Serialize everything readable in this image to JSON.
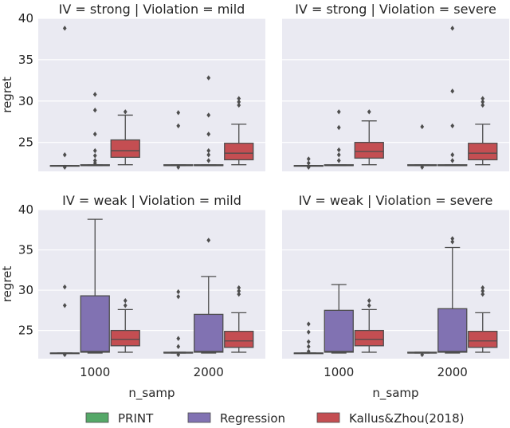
{
  "chart_data": {
    "type": "boxplot",
    "layout": "2x2 facet grid",
    "xlabel": "n_samp",
    "ylabel": "regret",
    "categories": [
      "1000",
      "2000"
    ],
    "ylim": [
      21.5,
      40
    ],
    "yticks": [
      25,
      30,
      35,
      40
    ],
    "legend": {
      "placement": "bottom",
      "entries": [
        {
          "name": "PRINT",
          "color": "#55a868"
        },
        {
          "name": "Regression",
          "color": "#8172b2"
        },
        {
          "name": "Kallus&Zhou(2018)",
          "color": "#c44e52"
        }
      ]
    },
    "panels": [
      {
        "title": "IV = strong | Violation = mild",
        "groups": [
          {
            "category": "1000",
            "boxes": [
              {
                "series": "PRINT",
                "whisker_low": 22.2,
                "q1": 22.2,
                "median": 22.2,
                "q3": 22.2,
                "whisker_high": 22.2,
                "outliers": [
                  38.8,
                  23.5,
                  22.0
                ]
              },
              {
                "series": "Regression",
                "whisker_low": 22.2,
                "q1": 22.2,
                "median": 22.2,
                "q3": 22.3,
                "whisker_high": 22.3,
                "outliers": [
                  30.8,
                  28.9,
                  26.0,
                  24.0,
                  23.4,
                  22.8,
                  22.5
                ]
              },
              {
                "series": "Kallus&Zhou(2018)",
                "whisker_low": 22.3,
                "q1": 23.2,
                "median": 24.0,
                "q3": 25.3,
                "whisker_high": 28.3,
                "outliers": [
                  28.7
                ]
              }
            ]
          },
          {
            "category": "2000",
            "boxes": [
              {
                "series": "PRINT",
                "whisker_low": 22.2,
                "q1": 22.2,
                "median": 22.2,
                "q3": 22.3,
                "whisker_high": 22.3,
                "outliers": [
                  28.6,
                  27.0,
                  22.0
                ]
              },
              {
                "series": "Regression",
                "whisker_low": 22.2,
                "q1": 22.2,
                "median": 22.2,
                "q3": 22.3,
                "whisker_high": 22.3,
                "outliers": [
                  32.8,
                  28.3,
                  26.0,
                  24.0,
                  23.5,
                  22.8
                ]
              },
              {
                "series": "Kallus&Zhou(2018)",
                "whisker_low": 22.3,
                "q1": 22.9,
                "median": 23.7,
                "q3": 24.9,
                "whisker_high": 27.2,
                "outliers": [
                  30.3,
                  29.9,
                  29.5
                ]
              }
            ]
          }
        ]
      },
      {
        "title": "IV = strong | Violation = severe",
        "groups": [
          {
            "category": "1000",
            "boxes": [
              {
                "series": "PRINT",
                "whisker_low": 22.2,
                "q1": 22.2,
                "median": 22.2,
                "q3": 22.2,
                "whisker_high": 22.2,
                "outliers": [
                  23.0,
                  22.5,
                  22.0
                ]
              },
              {
                "series": "Regression",
                "whisker_low": 22.2,
                "q1": 22.2,
                "median": 22.2,
                "q3": 22.3,
                "whisker_high": 22.3,
                "outliers": [
                  28.7,
                  26.8,
                  24.1,
                  23.5,
                  22.8
                ]
              },
              {
                "series": "Kallus&Zhou(2018)",
                "whisker_low": 22.3,
                "q1": 23.1,
                "median": 23.9,
                "q3": 25.0,
                "whisker_high": 27.6,
                "outliers": [
                  28.7
                ]
              }
            ]
          },
          {
            "category": "2000",
            "boxes": [
              {
                "series": "PRINT",
                "whisker_low": 22.2,
                "q1": 22.2,
                "median": 22.2,
                "q3": 22.3,
                "whisker_high": 22.3,
                "outliers": [
                  26.9,
                  22.0
                ]
              },
              {
                "series": "Regression",
                "whisker_low": 22.2,
                "q1": 22.2,
                "median": 22.2,
                "q3": 22.3,
                "whisker_high": 22.3,
                "outliers": [
                  38.8,
                  31.2,
                  27.0,
                  23.5,
                  22.8
                ]
              },
              {
                "series": "Kallus&Zhou(2018)",
                "whisker_low": 22.3,
                "q1": 22.9,
                "median": 23.7,
                "q3": 24.9,
                "whisker_high": 27.2,
                "outliers": [
                  30.3,
                  29.9,
                  29.5
                ]
              }
            ]
          }
        ]
      },
      {
        "title": "IV = weak | Violation = mild",
        "groups": [
          {
            "category": "1000",
            "boxes": [
              {
                "series": "PRINT",
                "whisker_low": 22.2,
                "q1": 22.2,
                "median": 22.2,
                "q3": 22.2,
                "whisker_high": 22.2,
                "outliers": [
                  30.4,
                  28.1,
                  22.0
                ]
              },
              {
                "series": "Regression",
                "whisker_low": 22.2,
                "q1": 22.3,
                "median": 22.4,
                "q3": 29.3,
                "whisker_high": 38.8,
                "outliers": []
              },
              {
                "series": "Kallus&Zhou(2018)",
                "whisker_low": 22.3,
                "q1": 23.1,
                "median": 23.9,
                "q3": 25.0,
                "whisker_high": 27.6,
                "outliers": [
                  28.7,
                  28.1
                ]
              }
            ]
          },
          {
            "category": "2000",
            "boxes": [
              {
                "series": "PRINT",
                "whisker_low": 22.2,
                "q1": 22.2,
                "median": 22.2,
                "q3": 22.3,
                "whisker_high": 22.3,
                "outliers": [
                  29.8,
                  29.2,
                  24.0,
                  23.0,
                  22.0
                ]
              },
              {
                "series": "Regression",
                "whisker_low": 22.2,
                "q1": 22.3,
                "median": 22.4,
                "q3": 27.0,
                "whisker_high": 31.7,
                "outliers": [
                  36.2
                ]
              },
              {
                "series": "Kallus&Zhou(2018)",
                "whisker_low": 22.3,
                "q1": 22.9,
                "median": 23.7,
                "q3": 24.9,
                "whisker_high": 27.2,
                "outliers": [
                  30.3,
                  29.9,
                  29.5
                ]
              }
            ]
          }
        ]
      },
      {
        "title": "IV = weak | Violation = severe",
        "groups": [
          {
            "category": "1000",
            "boxes": [
              {
                "series": "PRINT",
                "whisker_low": 22.2,
                "q1": 22.2,
                "median": 22.2,
                "q3": 22.2,
                "whisker_high": 22.2,
                "outliers": [
                  25.8,
                  24.8,
                  23.6,
                  23.0,
                  22.4
                ]
              },
              {
                "series": "Regression",
                "whisker_low": 22.2,
                "q1": 22.3,
                "median": 22.4,
                "q3": 27.5,
                "whisker_high": 30.7,
                "outliers": []
              },
              {
                "series": "Kallus&Zhou(2018)",
                "whisker_low": 22.3,
                "q1": 23.1,
                "median": 23.9,
                "q3": 25.0,
                "whisker_high": 27.6,
                "outliers": [
                  28.7,
                  28.1
                ]
              }
            ]
          },
          {
            "category": "2000",
            "boxes": [
              {
                "series": "PRINT",
                "whisker_low": 22.2,
                "q1": 22.2,
                "median": 22.2,
                "q3": 22.3,
                "whisker_high": 22.3,
                "outliers": [
                  22.0
                ]
              },
              {
                "series": "Regression",
                "whisker_low": 22.2,
                "q1": 22.3,
                "median": 22.4,
                "q3": 27.7,
                "whisker_high": 35.3,
                "outliers": [
                  36.4,
                  36.0
                ]
              },
              {
                "series": "Kallus&Zhou(2018)",
                "whisker_low": 22.3,
                "q1": 22.9,
                "median": 23.7,
                "q3": 24.9,
                "whisker_high": 27.2,
                "outliers": [
                  30.3,
                  29.9,
                  29.5
                ]
              }
            ]
          }
        ]
      }
    ]
  }
}
